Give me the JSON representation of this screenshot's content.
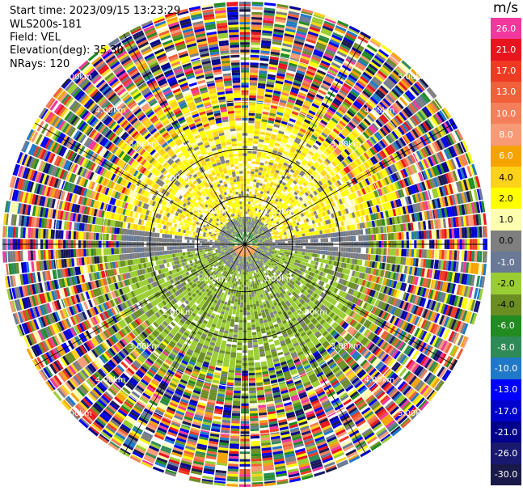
{
  "header": {
    "start_time": "Start time: 2023/09/15 13:23:29",
    "instrument": "WLS200s-181",
    "field": "Field: VEL",
    "elevation": "Elevation(deg): 35.30",
    "nrays": "NRays: 120"
  },
  "colorbar": {
    "unit": "m/s",
    "levels": [
      {
        "label": "26.0",
        "color": "#f2389c",
        "text_color": "#ffffff"
      },
      {
        "label": "21.0",
        "color": "#e8141e",
        "text_color": "#ffffff"
      },
      {
        "label": "17.0",
        "color": "#ef3b24",
        "text_color": "#ffffff"
      },
      {
        "label": "13.0",
        "color": "#f0603a",
        "text_color": "#ffffff"
      },
      {
        "label": "10.0",
        "color": "#f47f5a",
        "text_color": "#ffffff"
      },
      {
        "label": "8.0",
        "color": "#f89a76",
        "text_color": "#ffffff"
      },
      {
        "label": "6.0",
        "color": "#f5a300",
        "text_color": "#ffffff"
      },
      {
        "label": "4.0",
        "color": "#ffd21a",
        "text_color": "#000000"
      },
      {
        "label": "2.0",
        "color": "#ffff00",
        "text_color": "#000000"
      },
      {
        "label": "1.0",
        "color": "#fefeb0",
        "text_color": "#000000"
      },
      {
        "label": "0.0",
        "color": "#7f7f7f",
        "text_color": "#000000"
      },
      {
        "label": "-1.0",
        "color": "#6a7a96",
        "text_color": "#ffffff"
      },
      {
        "label": "-2.0",
        "color": "#9acd32",
        "text_color": "#000000"
      },
      {
        "label": "-4.0",
        "color": "#6b8e23",
        "text_color": "#000000"
      },
      {
        "label": "-6.0",
        "color": "#228b22",
        "text_color": "#ffffff"
      },
      {
        "label": "-8.0",
        "color": "#2e8b57",
        "text_color": "#ffffff"
      },
      {
        "label": "-10.0",
        "color": "#1f78c8",
        "text_color": "#ffffff"
      },
      {
        "label": "-13.0",
        "color": "#0000ff",
        "text_color": "#ffffff"
      },
      {
        "label": "-17.0",
        "color": "#0000cd",
        "text_color": "#ffffff"
      },
      {
        "label": "-21.0",
        "color": "#00008b",
        "text_color": "#ffffff"
      },
      {
        "label": "-26.0",
        "color": "#191970",
        "text_color": "#ffffff"
      },
      {
        "label": "-30.0",
        "color": "#1a1a4a",
        "text_color": "#ffffff"
      }
    ]
  },
  "range_labels": [
    "1.00km",
    "2.00km",
    "3.00km",
    "4.00km",
    "5.00km"
  ],
  "rings_km": [
    1,
    2,
    3,
    4,
    5
  ],
  "max_range_km": 5.1,
  "spokes_deg": [
    0,
    30,
    60,
    90,
    120,
    150,
    180,
    210,
    240,
    270,
    300,
    330
  ]
}
